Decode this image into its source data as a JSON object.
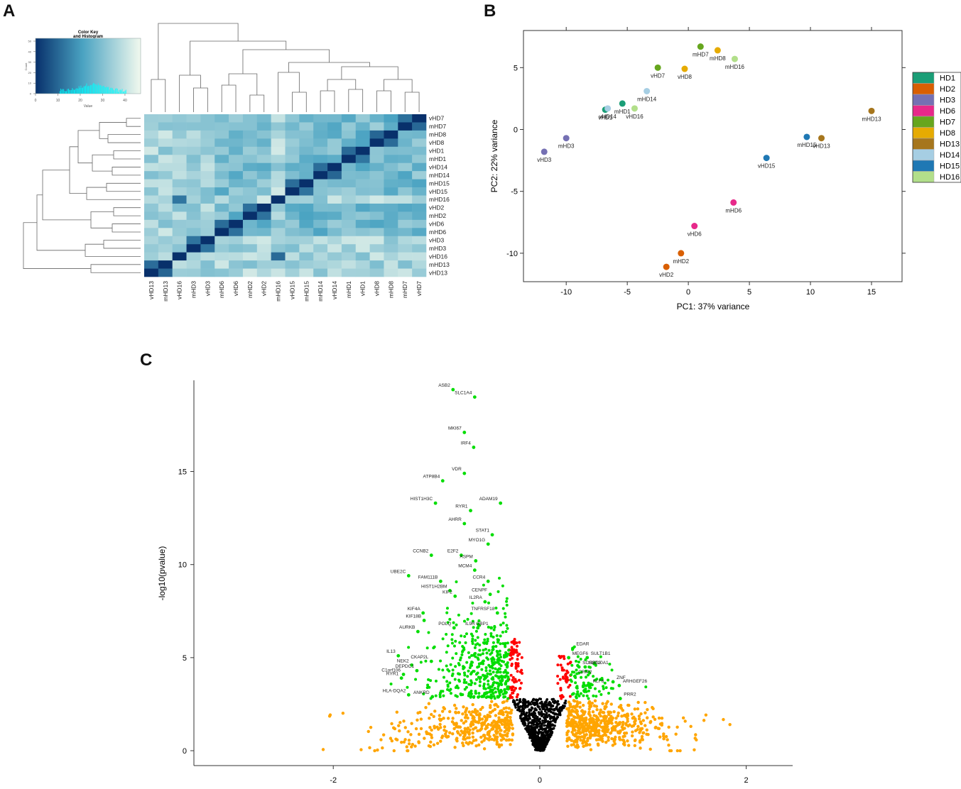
{
  "panels": {
    "a": "A",
    "b": "B",
    "c": "C"
  },
  "chart_data": [
    {
      "panel": "A",
      "type": "heatmap",
      "title": "Color Key and Histogram",
      "color_key": {
        "title_line1": "Color Key",
        "title_line2": "and Histogram",
        "xlabel": "Value",
        "ylabel": "Count",
        "x_ticks": [
          "0",
          "10",
          "20",
          "30",
          "40"
        ],
        "y_ticks": [
          "0",
          "10",
          "20",
          "30",
          "40",
          "50"
        ],
        "low_color": "#08306b",
        "mid_color": "#4aa3c2",
        "high_color": "#f1f9ee",
        "hist_color": "#00ffff"
      },
      "col_labels": [
        "vHD13",
        "mHD13",
        "vHD16",
        "mHD3",
        "vHD3",
        "mHD6",
        "vHD6",
        "mHD2",
        "vHD2",
        "mHD16",
        "vHD15",
        "mHD15",
        "mHD14",
        "vHD14",
        "mHD1",
        "vHD1",
        "vHD8",
        "mHD8",
        "mHD7",
        "vHD7"
      ],
      "row_labels": [
        "vHD7",
        "mHD7",
        "mHD8",
        "vHD8",
        "vHD1",
        "mHD1",
        "vHD14",
        "mHD14",
        "mHD15",
        "vHD15",
        "mHD16",
        "vHD2",
        "mHD2",
        "vHD6",
        "mHD6",
        "vHD3",
        "mHD3",
        "vHD16",
        "mHD13",
        "vHD13"
      ]
    },
    {
      "panel": "B",
      "type": "scatter",
      "xlabel": "PC1: 37% variance",
      "ylabel": "PC2: 22% variance",
      "xlim": [
        -13.5,
        17.5
      ],
      "ylim": [
        -12.3,
        8.0
      ],
      "x_ticks": [
        "-10",
        "-5",
        "0",
        "5",
        "10",
        "15"
      ],
      "y_ticks": [
        "-10",
        "-5",
        "0",
        "5"
      ],
      "legend": [
        {
          "label": "HD1",
          "color": "#1b9e77"
        },
        {
          "label": "HD2",
          "color": "#d95f02"
        },
        {
          "label": "HD3",
          "color": "#7570b3"
        },
        {
          "label": "HD6",
          "color": "#e7298a"
        },
        {
          "label": "HD7",
          "color": "#66a61e"
        },
        {
          "label": "HD8",
          "color": "#e6ab02"
        },
        {
          "label": "HD13",
          "color": "#a6761d"
        },
        {
          "label": "HD14",
          "color": "#a6cee3"
        },
        {
          "label": "HD15",
          "color": "#1f78b4"
        },
        {
          "label": "HD16",
          "color": "#b2df8a"
        }
      ],
      "points": [
        {
          "label": "mHD7",
          "group": "HD7",
          "x": 1.0,
          "y": 6.7
        },
        {
          "label": "mHD8",
          "group": "HD8",
          "x": 2.4,
          "y": 6.4
        },
        {
          "label": "mHD16",
          "group": "HD16",
          "x": 3.8,
          "y": 5.7
        },
        {
          "label": "vHD7",
          "group": "HD7",
          "x": -2.5,
          "y": 5.0
        },
        {
          "label": "vHD8",
          "group": "HD8",
          "x": -0.3,
          "y": 4.9
        },
        {
          "label": "mHD14",
          "group": "HD14",
          "x": -3.4,
          "y": 3.1
        },
        {
          "label": "mHD1",
          "group": "HD1",
          "x": -5.4,
          "y": 2.1
        },
        {
          "label": "vHD16",
          "group": "HD16",
          "x": -4.4,
          "y": 1.7
        },
        {
          "label": "vHD1",
          "group": "HD1",
          "x": -6.8,
          "y": 1.6
        },
        {
          "label": "vHD14",
          "group": "HD14",
          "x": -6.6,
          "y": 1.7
        },
        {
          "label": "mHD13",
          "group": "HD13",
          "x": 15.0,
          "y": 1.5
        },
        {
          "label": "mHD3",
          "group": "HD3",
          "x": -10.0,
          "y": -0.7
        },
        {
          "label": "vHD3",
          "group": "HD3",
          "x": -11.8,
          "y": -1.8
        },
        {
          "label": "mHD15",
          "group": "HD15",
          "x": 9.7,
          "y": -0.6
        },
        {
          "label": "vHD13",
          "group": "HD13",
          "x": 10.9,
          "y": -0.7
        },
        {
          "label": "vHD15",
          "group": "HD15",
          "x": 6.4,
          "y": -2.3
        },
        {
          "label": "mHD6",
          "group": "HD6",
          "x": 3.7,
          "y": -5.9
        },
        {
          "label": "vHD6",
          "group": "HD6",
          "x": 0.5,
          "y": -7.8
        },
        {
          "label": "mHD2",
          "group": "HD2",
          "x": -0.6,
          "y": -10.0
        },
        {
          "label": "vHD2",
          "group": "HD2",
          "x": -1.8,
          "y": -11.1
        }
      ]
    },
    {
      "panel": "C",
      "type": "scatter",
      "subtype": "volcano",
      "xlabel": "",
      "ylabel": "-log10(pvalue)",
      "xlim": [
        -3.35,
        2.45
      ],
      "ylim": [
        -0.8,
        19.9
      ],
      "x_ticks": [
        "-2",
        "0",
        "2"
      ],
      "y_ticks": [
        "0",
        "5",
        "10",
        "15"
      ],
      "colors": {
        "ns": "#000000",
        "sig_small": "#ff0000",
        "sig": "#00dd00",
        "fc_only": "#ffa500"
      },
      "labeled_genes": [
        {
          "gene": "ASB2",
          "x": -0.84,
          "y": 19.4
        },
        {
          "gene": "SLC1A4",
          "x": -0.63,
          "y": 19.0
        },
        {
          "gene": "MKI67",
          "x": -0.73,
          "y": 17.1
        },
        {
          "gene": "IRF4",
          "x": -0.64,
          "y": 16.3
        },
        {
          "gene": "VDR",
          "x": -0.73,
          "y": 14.9
        },
        {
          "gene": "ATP8B4",
          "x": -0.94,
          "y": 14.5
        },
        {
          "gene": "ADAM19",
          "x": -0.38,
          "y": 13.3
        },
        {
          "gene": "HIST1H3C",
          "x": -1.01,
          "y": 13.3
        },
        {
          "gene": "RYR1",
          "x": -0.67,
          "y": 12.9
        },
        {
          "gene": "AHRR",
          "x": -0.73,
          "y": 12.2
        },
        {
          "gene": "STAT1",
          "x": -0.46,
          "y": 11.6
        },
        {
          "gene": "MYO1G",
          "x": -0.5,
          "y": 11.1
        },
        {
          "gene": "CCNB2",
          "x": -1.05,
          "y": 10.5
        },
        {
          "gene": "E2F2",
          "x": -0.76,
          "y": 10.5
        },
        {
          "gene": "ASPM",
          "x": -0.62,
          "y": 10.2
        },
        {
          "gene": "MCM4",
          "x": -0.63,
          "y": 9.7
        },
        {
          "gene": "UBE2C",
          "x": -1.27,
          "y": 9.4
        },
        {
          "gene": "FAM111B",
          "x": -0.96,
          "y": 9.1
        },
        {
          "gene": "CCR4",
          "x": -0.5,
          "y": 9.1
        },
        {
          "gene": "HIST1H2BM",
          "x": -0.87,
          "y": 8.6
        },
        {
          "gene": "CENPF",
          "x": -0.48,
          "y": 8.4
        },
        {
          "gene": "KIF2",
          "x": -0.82,
          "y": 8.3
        },
        {
          "gene": "IL2RA",
          "x": -0.53,
          "y": 8.0
        },
        {
          "gene": "TNFRSF18",
          "x": -0.41,
          "y": 7.4
        },
        {
          "gene": "KIF4A",
          "x": -1.13,
          "y": 7.4
        },
        {
          "gene": "KIF18B",
          "x": -1.12,
          "y": 7.0
        },
        {
          "gene": "POLQ",
          "x": -0.83,
          "y": 6.6
        },
        {
          "gene": "IL9R",
          "x": -0.6,
          "y": 6.6
        },
        {
          "gene": "GBP1",
          "x": -0.47,
          "y": 6.6
        },
        {
          "gene": "AURKB",
          "x": -1.18,
          "y": 6.4
        },
        {
          "gene": "EDAR",
          "x": 0.32,
          "y": 5.5
        },
        {
          "gene": "SULT1B1",
          "x": 0.46,
          "y": 5.0
        },
        {
          "gene": "MEGF6",
          "x": 0.28,
          "y": 5.0
        },
        {
          "gene": "SLC10A1",
          "x": 0.44,
          "y": 4.5
        },
        {
          "gene": "SORBS3",
          "x": 0.38,
          "y": 4.5
        },
        {
          "gene": "IL13",
          "x": -1.37,
          "y": 5.1
        },
        {
          "gene": "NEK2",
          "x": -1.24,
          "y": 4.6
        },
        {
          "gene": "DEPDC1",
          "x": -1.19,
          "y": 4.3
        },
        {
          "gene": "C1orf106",
          "x": -1.32,
          "y": 4.1
        },
        {
          "gene": "RYR1",
          "x": -1.34,
          "y": 3.9
        },
        {
          "gene": "CKAP2L",
          "x": -1.05,
          "y": 4.8
        },
        {
          "gene": "HLA-DQA2",
          "x": -1.27,
          "y": 3.0
        },
        {
          "gene": "ANKRD",
          "x": -1.04,
          "y": 2.9
        },
        {
          "gene": "KLF6",
          "x": 0.48,
          "y": 3.5
        },
        {
          "gene": "ZNF",
          "x": 0.71,
          "y": 3.7
        },
        {
          "gene": "ARHGEF26",
          "x": 0.77,
          "y": 3.5
        },
        {
          "gene": "PRR2",
          "x": 0.78,
          "y": 2.8
        },
        {
          "gene": "CRIP2",
          "x": 0.34,
          "y": 4.0
        }
      ]
    }
  ]
}
